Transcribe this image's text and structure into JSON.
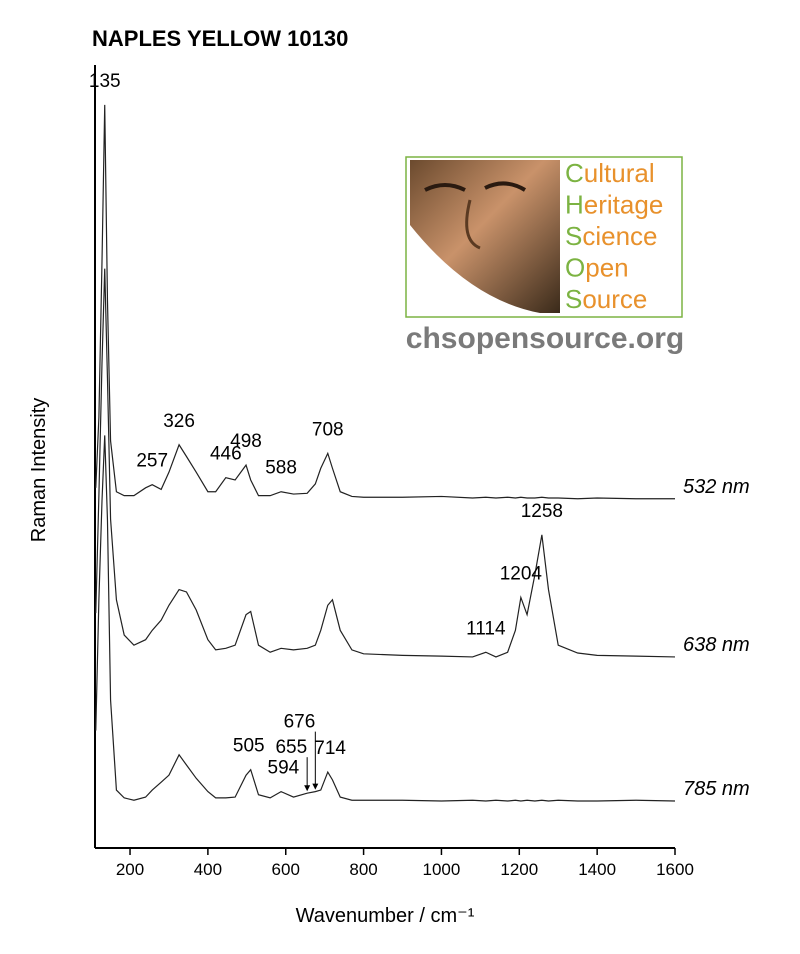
{
  "chart_data": {
    "type": "line",
    "title": "NAPLES YELLOW 10130",
    "x_label": "Wavenumber / cm⁻¹",
    "y_label": "Raman Intensity",
    "xlim": [
      110,
      1600
    ],
    "xticks": [
      200,
      400,
      600,
      800,
      1000,
      1200,
      1400,
      1600
    ],
    "ylim": [
      0,
      100
    ],
    "x": [
      112,
      120,
      128,
      135,
      142,
      150,
      165,
      185,
      210,
      240,
      257,
      280,
      300,
      326,
      345,
      370,
      400,
      420,
      446,
      470,
      498,
      510,
      530,
      560,
      588,
      620,
      655,
      676,
      690,
      708,
      720,
      740,
      770,
      800,
      900,
      1000,
      1080,
      1114,
      1140,
      1170,
      1190,
      1204,
      1220,
      1240,
      1258,
      1275,
      1300,
      1350,
      1400,
      1500,
      1600
    ],
    "series": [
      {
        "name": "532 nm",
        "color": "#222222",
        "values": [
          46,
          55,
          75,
          94.9,
          70,
          52,
          45.5,
          45,
          45,
          46,
          46.4,
          45.8,
          48,
          51.5,
          50,
          48,
          45.5,
          45.5,
          47.3,
          47,
          48.9,
          47,
          45,
          45,
          45.5,
          45.2,
          45.3,
          46.5,
          48.5,
          50.4,
          48.5,
          45.5,
          44.9,
          44.8,
          44.8,
          44.9,
          44.7,
          44.8,
          44.7,
          44.8,
          44.7,
          44.8,
          44.7,
          44.7,
          44.8,
          44.7,
          44.7,
          44.6,
          44.7,
          44.6,
          44.6
        ],
        "peaks": [
          135,
          257,
          326,
          446,
          498,
          588,
          708
        ]
      },
      {
        "name": "638 nm",
        "color": "#222222",
        "values": [
          30,
          45,
          62,
          74,
          60,
          42,
          31.7,
          27.2,
          25.9,
          26.6,
          27.8,
          29.1,
          31,
          33,
          32.7,
          30.4,
          26.6,
          25.3,
          25.5,
          25.9,
          29.8,
          30.2,
          25.9,
          25,
          25.5,
          25.3,
          25.5,
          25.9,
          27.8,
          31,
          31.7,
          27.8,
          25.3,
          24.8,
          24.6,
          24.5,
          24.4,
          25,
          24.4,
          25,
          27.8,
          32,
          29.8,
          34.9,
          40,
          33,
          25.9,
          24.9,
          24.6,
          24.5,
          24.4
        ],
        "peaks": [
          1114,
          1204,
          1258
        ]
      },
      {
        "name": "785 nm",
        "color": "#222222",
        "values": [
          15,
          31.7,
          44.4,
          52.7,
          41.9,
          18.9,
          7.4,
          6.4,
          6.1,
          6.5,
          7.4,
          8.4,
          9.3,
          11.9,
          10.6,
          8.9,
          7.2,
          6.4,
          6.4,
          6.5,
          9.3,
          10,
          6.8,
          6.4,
          7.2,
          6.5,
          7,
          7.2,
          7.4,
          9.7,
          8.7,
          6.5,
          6.1,
          6.1,
          6.1,
          6.0,
          6.1,
          6.0,
          6.1,
          6.0,
          6.1,
          6.0,
          6.1,
          6.0,
          6.1,
          6.0,
          6.1,
          6.0,
          6.0,
          6.1,
          6.0
        ],
        "peaks": [
          505,
          594,
          655,
          676,
          714
        ]
      }
    ]
  },
  "logo": {
    "lines": [
      {
        "initial": "C",
        "rest": "ultural"
      },
      {
        "initial": "H",
        "rest": "eritage"
      },
      {
        "initial": "S",
        "rest": "cience"
      },
      {
        "initial": "O",
        "rest": "pen"
      },
      {
        "initial": "S",
        "rest": "ource"
      }
    ],
    "url": "chsopensource.org"
  }
}
